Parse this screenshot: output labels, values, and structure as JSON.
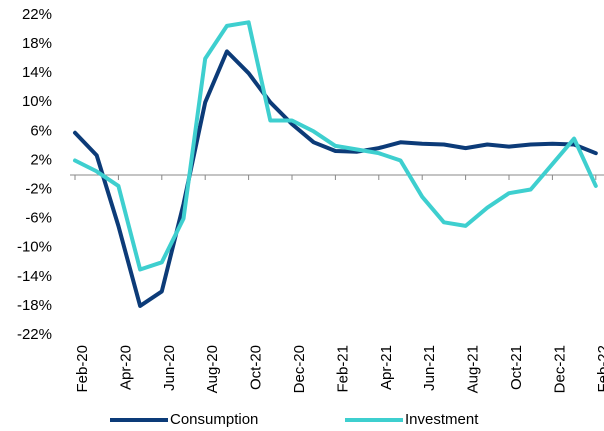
{
  "chart_data": {
    "type": "line",
    "categories": [
      "Feb-20",
      null,
      "Apr-20",
      null,
      "Jun-20",
      null,
      "Aug-20",
      null,
      "Oct-20",
      null,
      "Dec-20",
      null,
      "Feb-21",
      null,
      "Apr-21",
      null,
      "Jun-21",
      null,
      "Aug-21",
      null,
      "Oct-21",
      null,
      "Dec-21",
      null,
      "Feb-22"
    ],
    "series": [
      {
        "name": "Consumption",
        "color": "#0c3b78",
        "values": [
          5.8,
          2.7,
          -7,
          -18,
          -16,
          -4,
          10,
          17,
          14,
          10,
          7,
          4.5,
          3.3,
          3.2,
          3.7,
          4.5,
          4.3,
          4.2,
          3.7,
          4.2,
          3.9,
          4.2,
          4.3,
          4.2,
          3
        ]
      },
      {
        "name": "Investment",
        "color": "#3ecfcf",
        "values": [
          2,
          0.5,
          -1.5,
          -13,
          -12,
          -6,
          16,
          20.5,
          21,
          7.5,
          7.5,
          6,
          4,
          3.5,
          3,
          2,
          -3,
          -6.5,
          -7,
          -4.5,
          -2.5,
          -2,
          1.5,
          5,
          -1.5
        ]
      }
    ],
    "ylim": [
      -22,
      22
    ],
    "yticks": [
      {
        "value": 22,
        "label": "22%"
      },
      {
        "value": 18,
        "label": "18%"
      },
      {
        "value": 14,
        "label": "14%"
      },
      {
        "value": 10,
        "label": "10%"
      },
      {
        "value": 6,
        "label": "6%"
      },
      {
        "value": 2,
        "label": "2%"
      },
      {
        "value": -2,
        "label": "-2%"
      },
      {
        "value": -6,
        "label": "-6%"
      },
      {
        "value": -10,
        "label": "-10%"
      },
      {
        "value": -14,
        "label": "-14%"
      },
      {
        "value": -18,
        "label": "-18%"
      },
      {
        "value": -22,
        "label": "-22%"
      }
    ],
    "legend": "bottom"
  }
}
